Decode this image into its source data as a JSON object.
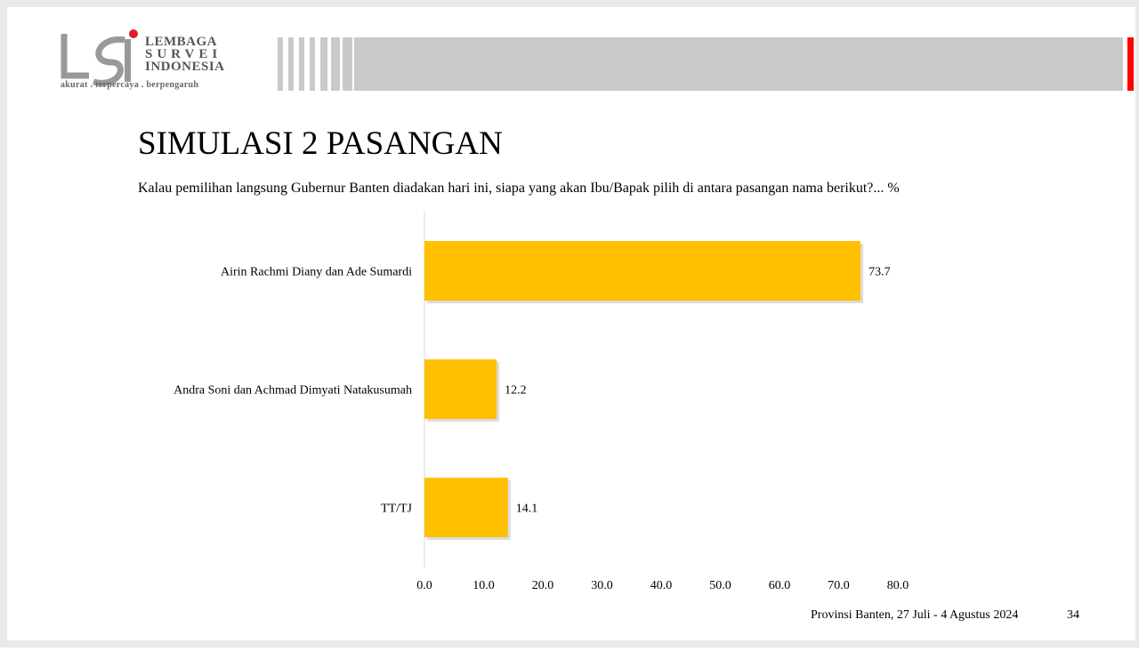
{
  "logo": {
    "name_lines": [
      "LEMBAGA",
      "SURVEI",
      "INDONESIA"
    ],
    "tagline": "akurat . terpercaya . berpengaruh",
    "brand_red": "#e31e24"
  },
  "title": "SIMULASI 2 PASANGAN",
  "subtitle": "Kalau pemilihan langsung Gubernur Banten diadakan hari ini, siapa yang akan Ibu/Bapak pilih di antara pasangan nama berikut?... %",
  "footer": {
    "text": "Provinsi Banten, 27 Juli - 4 Agustus 2024",
    "page": "34"
  },
  "chart_data": {
    "type": "bar",
    "orientation": "horizontal",
    "categories": [
      "Airin Rachmi Diany dan Ade Sumardi",
      "Andra Soni dan Achmad Dimyati Natakusumah",
      "TT/TJ"
    ],
    "values": [
      73.7,
      12.2,
      14.1
    ],
    "data_labels": [
      "73.7",
      "12.2",
      "14.1"
    ],
    "xlim": [
      0,
      80
    ],
    "x_ticks": [
      "0.0",
      "10.0",
      "20.0",
      "30.0",
      "40.0",
      "50.0",
      "60.0",
      "70.0",
      "80.0"
    ],
    "grid": false,
    "bar_color": "#ffc000"
  }
}
